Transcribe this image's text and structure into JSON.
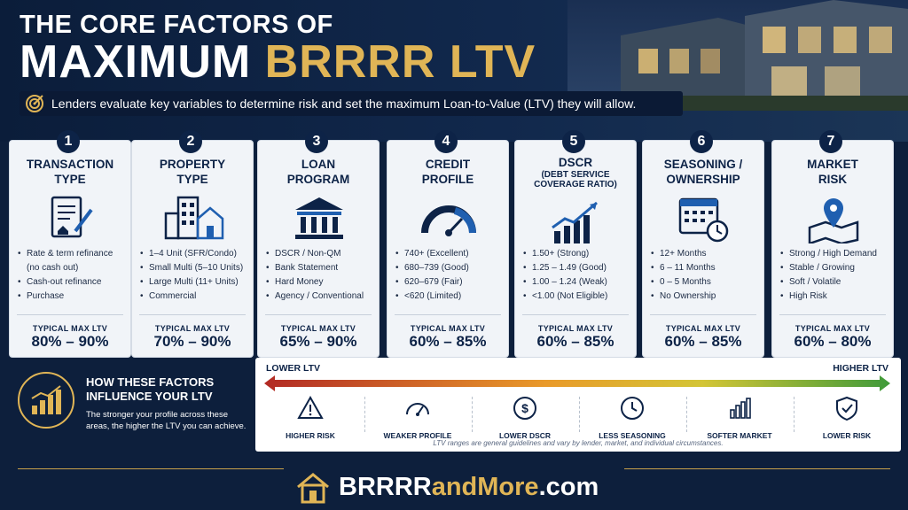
{
  "header": {
    "line1": "THE CORE FACTORS OF",
    "line2_white": "MAXIMUM ",
    "line2_gold": "BRRRR LTV",
    "subtitle": "Lenders evaluate key variables to determine risk and set the maximum Loan-to-Value (LTV) they will allow."
  },
  "cards": [
    {
      "num": "1",
      "title": "TRANSACTION\nTYPE",
      "subtitle": "",
      "icon": "document-pen-icon",
      "items": [
        "Rate & term refinance (no cash out)",
        "Cash-out refinance",
        "Purchase"
      ],
      "ltv_label": "TYPICAL MAX LTV",
      "ltv": "80% – 90%"
    },
    {
      "num": "2",
      "title": "PROPERTY\nTYPE",
      "subtitle": "",
      "icon": "buildings-icon",
      "items": [
        "1–4 Unit (SFR/Condo)",
        "Small Multi (5–10 Units)",
        "Large Multi (11+ Units)",
        "Commercial"
      ],
      "ltv_label": "TYPICAL MAX LTV",
      "ltv": "70% – 90%"
    },
    {
      "num": "3",
      "title": "LOAN\nPROGRAM",
      "subtitle": "",
      "icon": "bank-icon",
      "items": [
        "DSCR / Non-QM",
        "Bank Statement",
        "Hard Money",
        "Agency / Conventional"
      ],
      "ltv_label": "TYPICAL MAX LTV",
      "ltv": "65% – 90%"
    },
    {
      "num": "4",
      "title": "CREDIT\nPROFILE",
      "subtitle": "",
      "icon": "gauge-icon",
      "items": [
        "740+ (Excellent)",
        "680–739 (Good)",
        "620–679 (Fair)",
        "<620 (Limited)"
      ],
      "ltv_label": "TYPICAL MAX LTV",
      "ltv": "60% – 85%"
    },
    {
      "num": "5",
      "title": "DSCR",
      "subtitle": "(DEBT SERVICE\nCOVERAGE RATIO)",
      "icon": "growth-chart-icon",
      "items": [
        "1.50+  (Strong)",
        "1.25 – 1.49 (Good)",
        "1.00 – 1.24 (Weak)",
        "<1.00 (Not Eligible)"
      ],
      "ltv_label": "TYPICAL MAX LTV",
      "ltv": "60% – 85%"
    },
    {
      "num": "6",
      "title": "SEASONING /\nOWNERSHIP",
      "subtitle": "",
      "icon": "calendar-clock-icon",
      "items": [
        "12+ Months",
        "6 – 11 Months",
        "0 – 5 Months",
        "No Ownership"
      ],
      "ltv_label": "TYPICAL MAX LTV",
      "ltv": "60% – 85%"
    },
    {
      "num": "7",
      "title": "MARKET\nRISK",
      "subtitle": "",
      "icon": "map-pin-icon",
      "items": [
        "Strong / High Demand",
        "Stable / Growing",
        "Soft / Volatile",
        "High Risk"
      ],
      "ltv_label": "TYPICAL MAX LTV",
      "ltv": "60% – 80%"
    }
  ],
  "how": {
    "title": "HOW THESE FACTORS\nINFLUENCE YOUR LTV",
    "desc": "The stronger your profile across these areas, the higher the LTV you can achieve."
  },
  "scale": {
    "low_label": "LOWER LTV",
    "high_label": "HIGHER LTV",
    "factors": [
      {
        "label": "HIGHER RISK",
        "icon": "warning-icon"
      },
      {
        "label": "WEAKER PROFILE",
        "icon": "speedometer-icon"
      },
      {
        "label": "LOWER DSCR",
        "icon": "dollar-icon"
      },
      {
        "label": "LESS SEASONING",
        "icon": "clock-icon"
      },
      {
        "label": "SOFTER MARKET",
        "icon": "bar-chart-icon"
      },
      {
        "label": "LOWER RISK",
        "icon": "shield-check-icon"
      }
    ],
    "note": "LTV ranges are general guidelines and vary by lender, market, and individual circumstances."
  },
  "brand": {
    "white": "BRRRR",
    "gold": "andMore",
    "suffix": ".com"
  },
  "colors": {
    "navy": "#0d2347",
    "gold": "#e0b556",
    "red": "#b22a24",
    "green": "#3f9a3a"
  }
}
